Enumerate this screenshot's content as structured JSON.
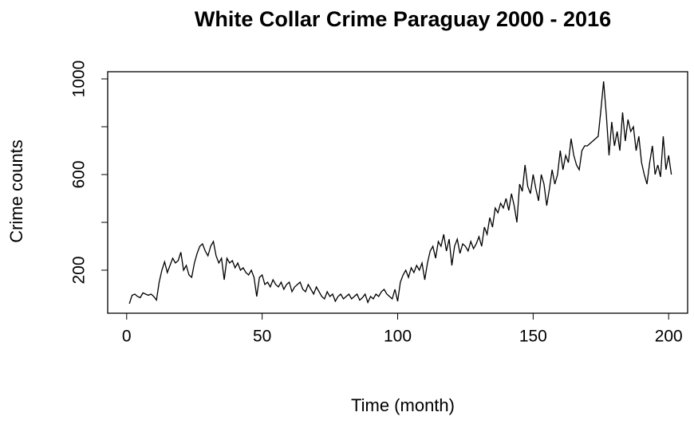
{
  "chart_data": {
    "type": "line",
    "title": "White Collar Crime Paraguay 2000 - 2016",
    "x_label": "Time (month)",
    "y_label": "Crime counts",
    "x": [
      1,
      2,
      3,
      4,
      5,
      6,
      7,
      8,
      9,
      10,
      11,
      12,
      13,
      14,
      15,
      16,
      17,
      18,
      19,
      20,
      21,
      22,
      23,
      24,
      25,
      26,
      27,
      28,
      29,
      30,
      31,
      32,
      33,
      34,
      35,
      36,
      37,
      38,
      39,
      40,
      41,
      42,
      43,
      44,
      45,
      46,
      47,
      48,
      49,
      50,
      51,
      52,
      53,
      54,
      55,
      56,
      57,
      58,
      59,
      60,
      61,
      62,
      63,
      64,
      65,
      66,
      67,
      68,
      69,
      70,
      71,
      72,
      73,
      74,
      75,
      76,
      77,
      78,
      79,
      80,
      81,
      82,
      83,
      84,
      85,
      86,
      87,
      88,
      89,
      90,
      91,
      92,
      93,
      94,
      95,
      96,
      97,
      98,
      99,
      100,
      101,
      102,
      103,
      104,
      105,
      106,
      107,
      108,
      109,
      110,
      111,
      112,
      113,
      114,
      115,
      116,
      117,
      118,
      119,
      120,
      121,
      122,
      123,
      124,
      125,
      126,
      127,
      128,
      129,
      130,
      131,
      132,
      133,
      134,
      135,
      136,
      137,
      138,
      139,
      140,
      141,
      142,
      143,
      144,
      145,
      146,
      147,
      148,
      149,
      150,
      151,
      152,
      153,
      154,
      155,
      156,
      157,
      158,
      159,
      160,
      161,
      162,
      163,
      164,
      165,
      166,
      167,
      168,
      169,
      170,
      171,
      172,
      173,
      174,
      175,
      176,
      177,
      178,
      179,
      180,
      181,
      182,
      183,
      184,
      185,
      186,
      187,
      188,
      189,
      190,
      191,
      192,
      193,
      194,
      195,
      196,
      197,
      198,
      199,
      200,
      201
    ],
    "series": [
      {
        "name": "Crime counts",
        "color": "#000000",
        "values": [
          60,
          95,
          100,
          90,
          85,
          105,
          100,
          95,
          100,
          90,
          75,
          150,
          200,
          235,
          190,
          220,
          250,
          230,
          240,
          275,
          200,
          220,
          180,
          170,
          230,
          270,
          300,
          310,
          280,
          260,
          300,
          320,
          260,
          230,
          250,
          160,
          250,
          230,
          240,
          210,
          230,
          200,
          210,
          190,
          180,
          200,
          170,
          90,
          170,
          180,
          140,
          150,
          130,
          160,
          140,
          130,
          150,
          120,
          140,
          150,
          110,
          130,
          140,
          150,
          120,
          110,
          140,
          120,
          100,
          130,
          110,
          90,
          80,
          110,
          90,
          100,
          70,
          90,
          100,
          80,
          90,
          100,
          80,
          90,
          100,
          75,
          85,
          100,
          65,
          90,
          80,
          100,
          90,
          110,
          120,
          100,
          90,
          80,
          120,
          70,
          150,
          180,
          200,
          170,
          210,
          190,
          220,
          200,
          230,
          160,
          230,
          280,
          300,
          250,
          320,
          300,
          350,
          280,
          330,
          220,
          300,
          330,
          270,
          310,
          300,
          280,
          320,
          290,
          310,
          340,
          300,
          380,
          350,
          420,
          380,
          460,
          440,
          480,
          460,
          500,
          450,
          520,
          470,
          400,
          560,
          530,
          640,
          550,
          520,
          600,
          540,
          490,
          600,
          560,
          470,
          540,
          620,
          560,
          600,
          700,
          620,
          680,
          650,
          750,
          680,
          640,
          620,
          700,
          720,
          720,
          730,
          740,
          750,
          760,
          870,
          990,
          850,
          680,
          820,
          720,
          780,
          700,
          860,
          740,
          830,
          780,
          800,
          700,
          760,
          650,
          600,
          560,
          650,
          720,
          600,
          640,
          590,
          760,
          620,
          680,
          600
        ]
      }
    ],
    "xlim": [
      -7,
      207
    ],
    "xticks": [
      0,
      50,
      100,
      150,
      200
    ],
    "ylim": [
      20,
      1030
    ],
    "yticks": [
      200,
      {
        "value": 400,
        "label": null
      },
      600,
      {
        "value": 800,
        "label": null
      },
      1000
    ]
  }
}
